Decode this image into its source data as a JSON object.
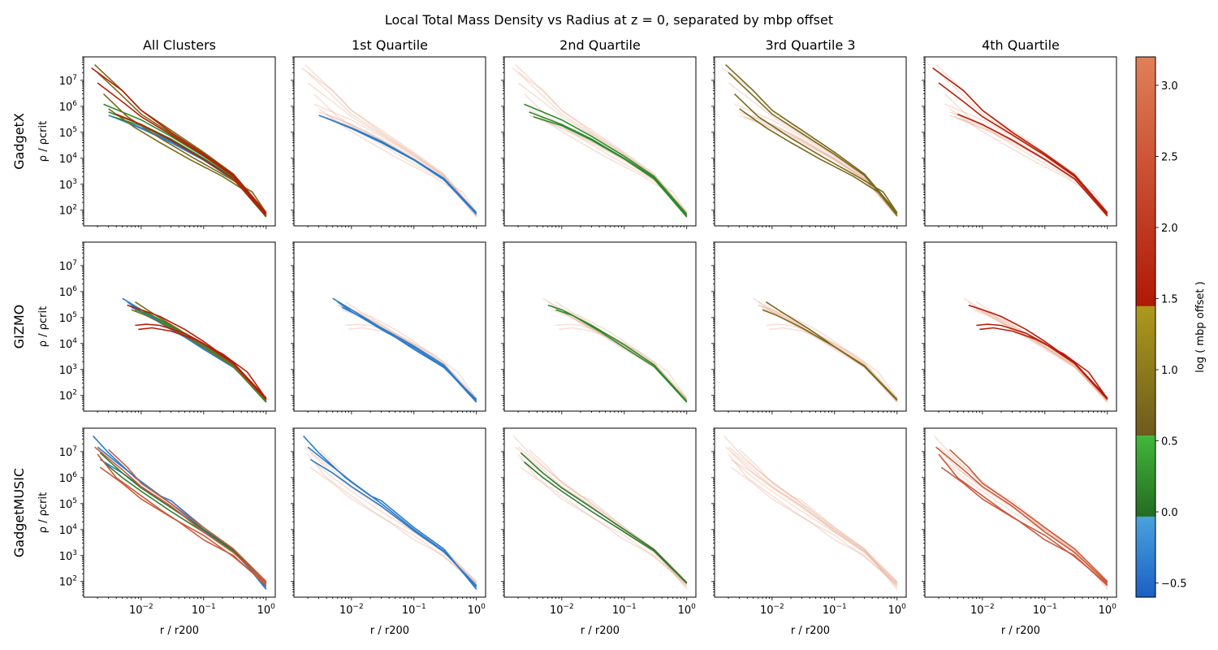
{
  "figure": {
    "title": "Local Total Mass Density vs Radius at z = 0, separated by mbp offset"
  },
  "chart_data": {
    "type": "line",
    "title": "Local Total Mass Density vs Radius at z = 0, separated by mbp offset",
    "columns": [
      "All Clusters",
      "1st Quartile",
      "2nd Quartile",
      "3rd Quartile 3",
      "4th Quartile"
    ],
    "rows": [
      "GadgetX",
      "GIZMO",
      "GadgetMUSIC"
    ],
    "xlabel": "r / r200",
    "ylabel": "ρ / ρcrit",
    "xscale": "log",
    "yscale": "log",
    "xlim": [
      0.0012,
      1.4
    ],
    "ylim": [
      25,
      80000000
    ],
    "x_ticks": [
      {
        "value": 0.01,
        "base": "10",
        "exp": "−2"
      },
      {
        "value": 0.1,
        "base": "10",
        "exp": "−1"
      },
      {
        "value": 1,
        "base": "10",
        "exp": "0"
      }
    ],
    "y_ticks": [
      {
        "value": 100,
        "base": "10",
        "exp": "2"
      },
      {
        "value": 1000,
        "base": "10",
        "exp": "3"
      },
      {
        "value": 10000,
        "base": "10",
        "exp": "4"
      },
      {
        "value": 100000,
        "base": "10",
        "exp": "5"
      },
      {
        "value": 1000000,
        "base": "10",
        "exp": "6"
      },
      {
        "value": 10000000,
        "base": "10",
        "exp": "7"
      }
    ],
    "quartile_colors": [
      "#2a7ccc",
      "#2e8b2e",
      "#7a6a1c",
      "#b81c08"
    ],
    "music_colors": [
      "#2a7ccc",
      "#2e7a2e",
      "#c9d9e6",
      "#cc5a3c"
    ],
    "faded_color": "#e8a890",
    "series": [
      {
        "row": 0,
        "quartile": 0,
        "curves": [
          {
            "x": [
              0.003,
              0.01,
              0.03,
              0.1,
              0.3,
              1.0
            ],
            "y": [
              450000,
              150000,
              45000,
              9000,
              1700,
              80
            ]
          },
          {
            "x": [
              0.004,
              0.01,
              0.03,
              0.1,
              0.3,
              1.0
            ],
            "y": [
              350000,
              140000,
              40000,
              8500,
              1500,
              70
            ]
          }
        ]
      },
      {
        "row": 0,
        "quartile": 1,
        "curves": [
          {
            "x": [
              0.0025,
              0.01,
              0.03,
              0.1,
              0.3,
              1.0
            ],
            "y": [
              1200000,
              300000,
              70000,
              12000,
              2000,
              70
            ]
          },
          {
            "x": [
              0.003,
              0.01,
              0.03,
              0.1,
              0.3,
              1.0
            ],
            "y": [
              600000,
              200000,
              55000,
              10000,
              1800,
              60
            ]
          },
          {
            "x": [
              0.0035,
              0.01,
              0.03,
              0.1,
              0.3,
              1.0
            ],
            "y": [
              400000,
              180000,
              50000,
              9500,
              1600,
              55
            ]
          }
        ]
      },
      {
        "row": 0,
        "quartile": 2,
        "curves": [
          {
            "x": [
              0.0018,
              0.005,
              0.01,
              0.03,
              0.1,
              0.3,
              1.0
            ],
            "y": [
              40000000,
              4000000,
              700000,
              120000,
              17000,
              2500,
              80
            ]
          },
          {
            "x": [
              0.002,
              0.005,
              0.01,
              0.03,
              0.1,
              0.3,
              1.0
            ],
            "y": [
              20000000,
              2500000,
              500000,
              90000,
              14000,
              2200,
              70
            ]
          },
          {
            "x": [
              0.003,
              0.008,
              0.02,
              0.06,
              0.2,
              0.5,
              1.0
            ],
            "y": [
              800000,
              150000,
              40000,
              9000,
              2000,
              500,
              60
            ]
          },
          {
            "x": [
              0.0025,
              0.006,
              0.02,
              0.07,
              0.25,
              0.6,
              1.0
            ],
            "y": [
              3000000,
              400000,
              60000,
              10000,
              1800,
              500,
              80
            ]
          }
        ]
      },
      {
        "row": 0,
        "quartile": 3,
        "curves": [
          {
            "x": [
              0.0016,
              0.005,
              0.01,
              0.03,
              0.1,
              0.3,
              1.0
            ],
            "y": [
              30000000,
              4000000,
              700000,
              100000,
              15000,
              2300,
              80
            ]
          },
          {
            "x": [
              0.002,
              0.005,
              0.01,
              0.03,
              0.1,
              0.3,
              1.0
            ],
            "y": [
              8000000,
              1500000,
              400000,
              80000,
              13000,
              2000,
              70
            ]
          },
          {
            "x": [
              0.004,
              0.01,
              0.03,
              0.1,
              0.3,
              1.0
            ],
            "y": [
              500000,
              200000,
              50000,
              9000,
              1600,
              60
            ]
          }
        ]
      },
      {
        "row": 1,
        "quartile": 0,
        "curves": [
          {
            "x": [
              0.005,
              0.01,
              0.03,
              0.1,
              0.3,
              1.0
            ],
            "y": [
              550000,
              200000,
              40000,
              8000,
              1500,
              60
            ]
          },
          {
            "x": [
              0.006,
              0.01,
              0.03,
              0.1,
              0.3,
              1.0
            ],
            "y": [
              400000,
              170000,
              35000,
              7000,
              1300,
              55
            ]
          },
          {
            "x": [
              0.007,
              0.015,
              0.04,
              0.1,
              0.3,
              1.0
            ],
            "y": [
              250000,
              100000,
              25000,
              6000,
              1200,
              70
            ]
          }
        ]
      },
      {
        "row": 1,
        "quartile": 1,
        "curves": [
          {
            "x": [
              0.006,
              0.01,
              0.03,
              0.1,
              0.3,
              1.0
            ],
            "y": [
              300000,
              200000,
              50000,
              9000,
              1500,
              60
            ]
          },
          {
            "x": [
              0.008,
              0.015,
              0.04,
              0.1,
              0.3,
              1.0
            ],
            "y": [
              200000,
              120000,
              30000,
              7000,
              1300,
              55
            ]
          }
        ]
      },
      {
        "row": 1,
        "quartile": 2,
        "curves": [
          {
            "x": [
              0.008,
              0.015,
              0.04,
              0.1,
              0.3,
              1.0
            ],
            "y": [
              400000,
              150000,
              35000,
              7500,
              1400,
              70
            ]
          },
          {
            "x": [
              0.007,
              0.012,
              0.03,
              0.1,
              0.3,
              1.0
            ],
            "y": [
              200000,
              120000,
              40000,
              7500,
              1300,
              65
            ]
          }
        ]
      },
      {
        "row": 1,
        "quartile": 3,
        "curves": [
          {
            "x": [
              0.006,
              0.01,
              0.02,
              0.05,
              0.1,
              0.3,
              1.0
            ],
            "y": [
              300000,
              200000,
              110000,
              35000,
              12000,
              1800,
              80
            ]
          },
          {
            "x": [
              0.008,
              0.012,
              0.02,
              0.05,
              0.1,
              0.3,
              1.0
            ],
            "y": [
              50000,
              55000,
              50000,
              25000,
              10000,
              1700,
              70
            ]
          },
          {
            "x": [
              0.009,
              0.015,
              0.03,
              0.07,
              0.2,
              0.5,
              1.0
            ],
            "y": [
              35000,
              40000,
              30000,
              15000,
              4000,
              800,
              75
            ]
          }
        ]
      },
      {
        "row": 2,
        "quartile": 0,
        "curves": [
          {
            "x": [
              0.0017,
              0.003,
              0.008,
              0.02,
              0.03,
              0.1,
              0.3,
              1.0
            ],
            "y": [
              40000000,
              9000000,
              1000000,
              200000,
              130000,
              12000,
              1800,
              50
            ]
          },
          {
            "x": [
              0.002,
              0.004,
              0.01,
              0.03,
              0.1,
              0.3,
              1.0
            ],
            "y": [
              15000000,
              4000000,
              700000,
              100000,
              10000,
              1500,
              60
            ]
          },
          {
            "x": [
              0.0022,
              0.005,
              0.01,
              0.03,
              0.1,
              0.3,
              1.0
            ],
            "y": [
              5000000,
              1500000,
              450000,
              80000,
              9000,
              1400,
              70
            ]
          }
        ]
      },
      {
        "row": 2,
        "quartile": 1,
        "curves": [
          {
            "x": [
              0.0022,
              0.005,
              0.01,
              0.03,
              0.1,
              0.3,
              1.0
            ],
            "y": [
              9000000,
              1500000,
              400000,
              70000,
              10000,
              1700,
              90
            ]
          },
          {
            "x": [
              0.0025,
              0.005,
              0.01,
              0.03,
              0.1,
              0.3,
              1.0
            ],
            "y": [
              4000000,
              1000000,
              300000,
              50000,
              8000,
              1500,
              85
            ]
          }
        ]
      },
      {
        "row": 2,
        "quartile": 3,
        "curves": [
          {
            "x": [
              0.0018,
              0.005,
              0.01,
              0.03,
              0.1,
              0.3,
              1.0
            ],
            "y": [
              15000000,
              2000000,
              450000,
              80000,
              8000,
              1300,
              90
            ]
          },
          {
            "x": [
              0.002,
              0.004,
              0.01,
              0.02,
              0.04,
              0.1,
              0.3,
              1.0
            ],
            "y": [
              8000000,
              1000000,
              200000,
              60000,
              20000,
              4000,
              1000,
              70
            ]
          },
          {
            "x": [
              0.0022,
              0.005,
              0.01,
              0.03,
              0.05,
              0.1,
              0.3,
              1.0
            ],
            "y": [
              2500000,
              600000,
              150000,
              30000,
              15000,
              6000,
              900,
              80
            ]
          },
          {
            "x": [
              0.003,
              0.006,
              0.01,
              0.03,
              0.1,
              0.3,
              1.0
            ],
            "y": [
              12000000,
              2500000,
              600000,
              100000,
              12000,
              1800,
              100
            ]
          }
        ]
      }
    ],
    "colorbar": {
      "label": "log ( mbp offset )",
      "range": [
        -0.6,
        3.2
      ],
      "ticks": [
        {
          "value": -0.5,
          "label": "−0.5"
        },
        {
          "value": 0.0,
          "label": "0.0"
        },
        {
          "value": 0.5,
          "label": "0.5"
        },
        {
          "value": 1.0,
          "label": "1.0"
        },
        {
          "value": 1.5,
          "label": "1.5"
        },
        {
          "value": 2.0,
          "label": "2.0"
        },
        {
          "value": 2.5,
          "label": "2.5"
        },
        {
          "value": 3.0,
          "label": "3.0"
        }
      ],
      "segments": [
        {
          "from": -0.6,
          "to": -0.03,
          "colors": [
            "#1a5fc4",
            "#4aa3dc"
          ]
        },
        {
          "from": -0.03,
          "to": 0.54,
          "colors": [
            "#246b22",
            "#42b83a"
          ]
        },
        {
          "from": 0.54,
          "to": 1.45,
          "colors": [
            "#6e5a1c",
            "#ad9a1c"
          ]
        },
        {
          "from": 1.45,
          "to": 3.2,
          "colors": [
            "#b01804",
            "#e08058"
          ]
        }
      ]
    }
  }
}
